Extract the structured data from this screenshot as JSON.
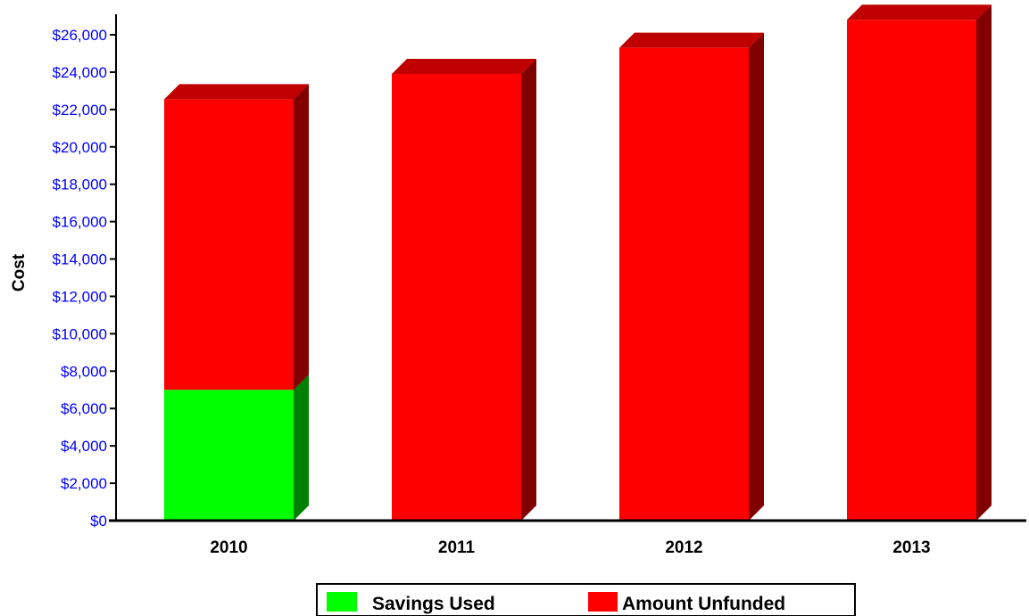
{
  "chart_data": {
    "type": "bar",
    "stacked": true,
    "three_d": true,
    "categories": [
      "2010",
      "2011",
      "2012",
      "2013"
    ],
    "series": [
      {
        "name": "Savings Used",
        "values": [
          7000,
          0,
          0,
          0
        ],
        "color": "#00ff00",
        "side_color": "#008000",
        "top_color": "#00c000"
      },
      {
        "name": "Amount Unfunded",
        "values": [
          15550,
          23900,
          25300,
          26800
        ],
        "color": "#ff0000",
        "side_color": "#800000",
        "top_color": "#c00000"
      }
    ],
    "ylabel": "Cost",
    "xlabel": "",
    "title": "",
    "ylim": [
      0,
      26000
    ],
    "ytick_step": 2000,
    "ytick_labels": [
      "$0",
      "$2,000",
      "$4,000",
      "$6,000",
      "$8,000",
      "$10,000",
      "$12,000",
      "$14,000",
      "$16,000",
      "$18,000",
      "$20,000",
      "$22,000",
      "$24,000",
      "$26,000"
    ],
    "tick_label_color": "#0000ff",
    "grid": false,
    "legend_position": "bottom-center"
  }
}
